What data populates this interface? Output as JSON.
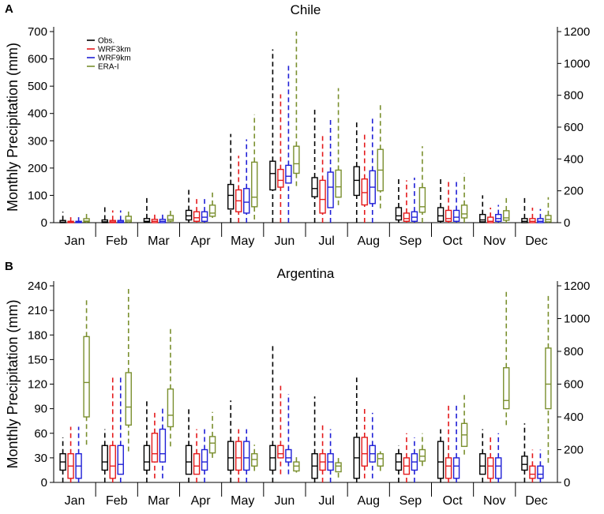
{
  "figure": {
    "panels": [
      "A",
      "B"
    ]
  },
  "colors": {
    "obs": "#000000",
    "wrf3": "#e41a1c",
    "wrf9": "#1f1fd6",
    "era": "#7a8f2e"
  },
  "chart_data": [
    {
      "type": "boxplot",
      "panel": "A",
      "title": "Chile",
      "ylabel": "Monthly Precipitation (mm)",
      "ylim": [
        0,
        700
      ],
      "yticks": [
        "0",
        "100",
        "200",
        "300",
        "400",
        "500",
        "600",
        "700"
      ],
      "y2lim": [
        0,
        1200
      ],
      "y2ticks": [
        "0",
        "200",
        "400",
        "600",
        "800",
        "1000",
        "1200"
      ],
      "categories": [
        "Jan",
        "Feb",
        "Mar",
        "Apr",
        "May",
        "Jun",
        "Jul",
        "Aug",
        "Sep",
        "Oct",
        "Nov",
        "Dec"
      ],
      "legend": [
        "Obs.",
        "WRF3km",
        "WRF9km",
        "ERA-I"
      ],
      "series": [
        {
          "name": "Obs.",
          "axis": "left",
          "boxes": [
            [
              0,
              0,
              2,
              8,
              40
            ],
            [
              0,
              0,
              3,
              10,
              60
            ],
            [
              0,
              2,
              5,
              15,
              90
            ],
            [
              0,
              10,
              25,
              45,
              130
            ],
            [
              0,
              50,
              100,
              140,
              325
            ],
            [
              0,
              120,
              180,
              225,
              635
            ],
            [
              0,
              95,
              125,
              165,
              420
            ],
            [
              0,
              100,
              155,
              205,
              370
            ],
            [
              0,
              10,
              25,
              55,
              170
            ],
            [
              0,
              5,
              25,
              55,
              170
            ],
            [
              0,
              3,
              10,
              30,
              100
            ],
            [
              0,
              0,
              5,
              15,
              100
            ]
          ]
        },
        {
          "name": "WRF3km",
          "axis": "left",
          "boxes": [
            [
              0,
              0,
              2,
              5,
              20
            ],
            [
              0,
              0,
              3,
              8,
              45
            ],
            [
              0,
              0,
              5,
              12,
              35
            ],
            [
              0,
              5,
              18,
              40,
              90
            ],
            [
              0,
              40,
              80,
              120,
              245
            ],
            [
              0,
              130,
              155,
              195,
              470
            ],
            [
              0,
              35,
              85,
              155,
              320
            ],
            [
              0,
              65,
              110,
              160,
              325
            ],
            [
              0,
              5,
              15,
              35,
              155
            ],
            [
              0,
              5,
              15,
              45,
              155
            ],
            [
              0,
              0,
              5,
              20,
              55
            ],
            [
              0,
              0,
              5,
              15,
              55
            ]
          ]
        },
        {
          "name": "WRF9km",
          "axis": "left",
          "boxes": [
            [
              0,
              0,
              2,
              5,
              20
            ],
            [
              0,
              0,
              3,
              8,
              45
            ],
            [
              0,
              0,
              5,
              12,
              40
            ],
            [
              0,
              5,
              20,
              40,
              95
            ],
            [
              0,
              35,
              75,
              125,
              305
            ],
            [
              0,
              145,
              170,
              210,
              575
            ],
            [
              0,
              55,
              130,
              185,
              380
            ],
            [
              0,
              70,
              130,
              190,
              385
            ],
            [
              0,
              5,
              20,
              40,
              165
            ],
            [
              0,
              5,
              20,
              45,
              160
            ],
            [
              0,
              5,
              15,
              30,
              65
            ],
            [
              0,
              0,
              5,
              15,
              50
            ]
          ]
        },
        {
          "name": "ERA-I",
          "axis": "right",
          "boxes": [
            [
              0,
              5,
              10,
              25,
              60
            ],
            [
              0,
              5,
              15,
              40,
              80
            ],
            [
              0,
              10,
              20,
              45,
              80
            ],
            [
              30,
              40,
              60,
              110,
              200
            ],
            [
              20,
              100,
              160,
              380,
              680
            ],
            [
              230,
              310,
              370,
              480,
              1200
            ],
            [
              110,
              160,
              225,
              330,
              845
            ],
            [
              90,
              200,
              330,
              460,
              745
            ],
            [
              0,
              65,
              100,
              220,
              480
            ],
            [
              0,
              30,
              55,
              110,
              310
            ],
            [
              0,
              15,
              30,
              75,
              165
            ],
            [
              0,
              5,
              20,
              45,
              160
            ]
          ]
        }
      ]
    },
    {
      "type": "boxplot",
      "panel": "B",
      "title": "Argentina",
      "ylabel": "Monthly Precipitation (mm)",
      "ylim": [
        0,
        240
      ],
      "yticks": [
        "0",
        "30",
        "60",
        "90",
        "120",
        "150",
        "180",
        "210",
        "240"
      ],
      "y2lim": [
        0,
        1200
      ],
      "y2ticks": [
        "0",
        "200",
        "400",
        "600",
        "800",
        "1000",
        "1200"
      ],
      "categories": [
        "Jan",
        "Feb",
        "Mar",
        "Apr",
        "May",
        "Jun",
        "Jul",
        "Aug",
        "Sep",
        "Oct",
        "Nov",
        "Dec"
      ],
      "series": [
        {
          "name": "Obs.",
          "axis": "left",
          "boxes": [
            [
              0,
              15,
              25,
              35,
              55
            ],
            [
              0,
              15,
              25,
              45,
              65
            ],
            [
              0,
              15,
              25,
              45,
              100
            ],
            [
              0,
              10,
              25,
              45,
              90
            ],
            [
              0,
              15,
              30,
              50,
              100
            ],
            [
              0,
              15,
              30,
              45,
              168
            ],
            [
              0,
              5,
              20,
              35,
              105
            ],
            [
              0,
              5,
              30,
              55,
              128
            ],
            [
              0,
              15,
              25,
              35,
              45
            ],
            [
              0,
              5,
              25,
              50,
              65
            ],
            [
              0,
              10,
              20,
              35,
              65
            ],
            [
              0,
              15,
              22,
              32,
              72
            ]
          ]
        },
        {
          "name": "WRF3km",
          "axis": "left",
          "boxes": [
            [
              0,
              5,
              20,
              35,
              68
            ],
            [
              0,
              5,
              20,
              45,
              128
            ],
            [
              5,
              25,
              35,
              60,
              85
            ],
            [
              0,
              10,
              20,
              35,
              65
            ],
            [
              0,
              15,
              30,
              50,
              65
            ],
            [
              10,
              30,
              35,
              45,
              118
            ],
            [
              0,
              15,
              25,
              35,
              70
            ],
            [
              5,
              20,
              35,
              55,
              90
            ],
            [
              0,
              10,
              20,
              30,
              60
            ],
            [
              0,
              5,
              20,
              30,
              95
            ],
            [
              0,
              5,
              20,
              30,
              55
            ],
            [
              0,
              5,
              10,
              20,
              40
            ]
          ]
        },
        {
          "name": "WRF9km",
          "axis": "left",
          "boxes": [
            [
              0,
              5,
              20,
              35,
              68
            ],
            [
              0,
              10,
              22,
              45,
              128
            ],
            [
              5,
              25,
              35,
              65,
              90
            ],
            [
              0,
              15,
              25,
              40,
              65
            ],
            [
              0,
              15,
              30,
              50,
              65
            ],
            [
              10,
              25,
              30,
              40,
              108
            ],
            [
              0,
              15,
              25,
              35,
              65
            ],
            [
              5,
              25,
              35,
              45,
              85
            ],
            [
              0,
              15,
              25,
              35,
              55
            ],
            [
              0,
              5,
              20,
              30,
              95
            ],
            [
              0,
              5,
              20,
              30,
              60
            ],
            [
              0,
              5,
              10,
              20,
              40
            ]
          ]
        },
        {
          "name": "ERA-I",
          "axis": "right",
          "boxes": [
            [
              230,
              400,
              610,
              890,
              1120
            ],
            [
              190,
              350,
              460,
              670,
              1200
            ],
            [
              220,
              340,
              410,
              570,
              950
            ],
            [
              150,
              180,
              240,
              280,
              430
            ],
            [
              70,
              100,
              140,
              175,
              230
            ],
            [
              60,
              70,
              100,
              125,
              170
            ],
            [
              30,
              65,
              100,
              120,
              160
            ],
            [
              70,
              100,
              145,
              175,
              190
            ],
            [
              100,
              130,
              160,
              200,
              300
            ],
            [
              170,
              220,
              290,
              360,
              550
            ],
            [
              350,
              450,
              500,
              700,
              1170
            ],
            [
              120,
              450,
              600,
              820,
              1150
            ]
          ]
        }
      ]
    }
  ]
}
